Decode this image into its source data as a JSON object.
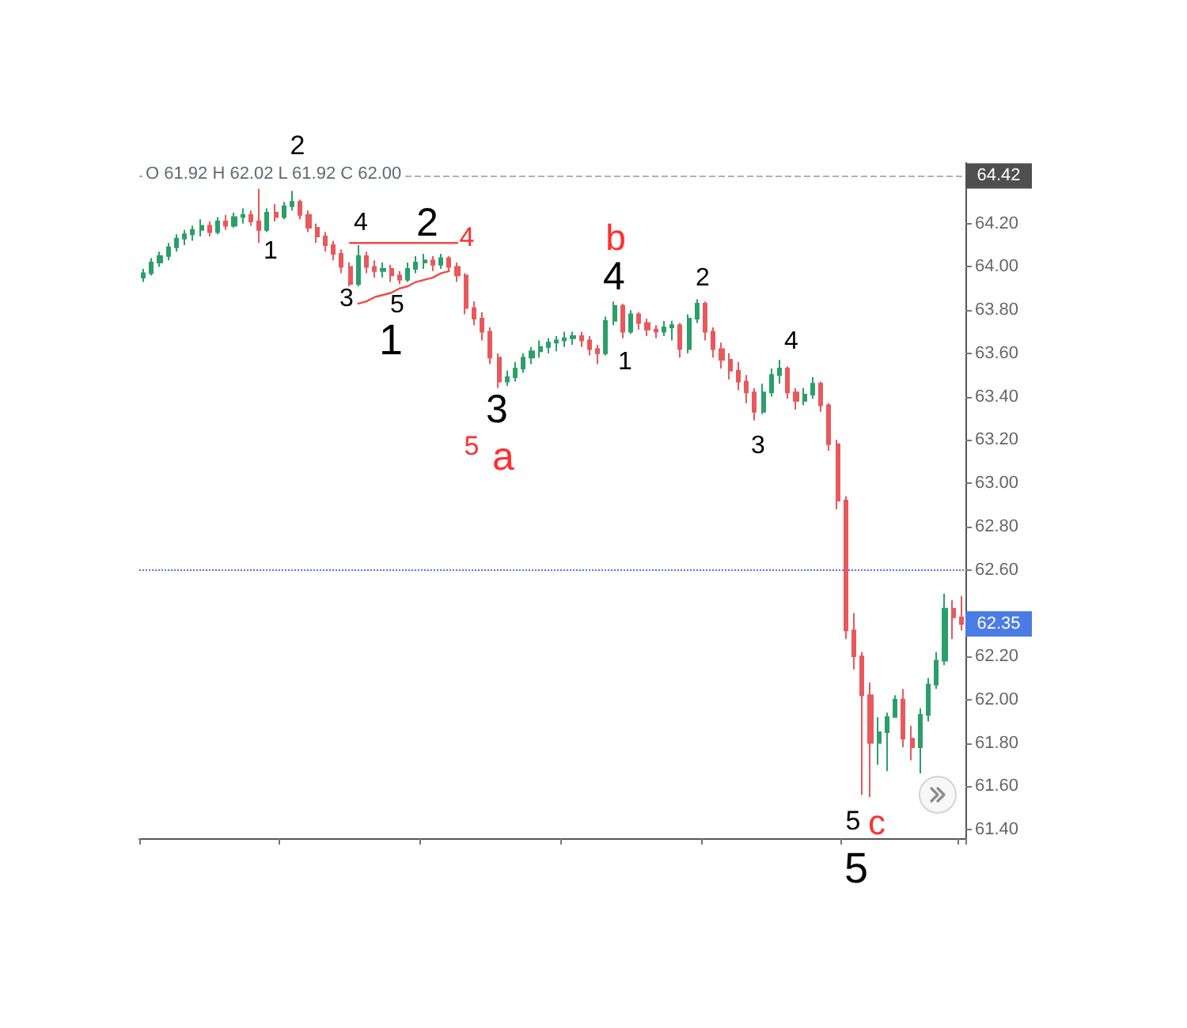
{
  "chart_data": {
    "type": "candlestick",
    "categories": [
      null,
      null,
      null,
      null,
      null,
      null,
      null,
      null,
      null,
      null,
      null,
      null,
      null,
      null,
      null,
      null,
      null,
      null,
      null,
      null,
      null,
      null,
      null,
      null,
      null,
      null,
      null,
      null,
      null,
      null,
      null,
      null,
      null,
      null,
      null,
      null,
      null,
      null,
      null,
      null,
      null,
      null,
      null,
      null,
      null,
      null,
      null,
      null,
      null,
      null,
      null,
      null,
      null,
      null,
      null,
      null,
      null,
      null,
      null,
      null,
      null,
      null,
      null,
      null,
      null,
      null,
      null,
      null,
      null,
      null,
      null,
      null,
      null,
      null,
      null,
      null,
      null,
      null,
      null,
      null,
      null,
      null,
      null,
      null,
      null,
      null,
      null,
      null,
      null,
      null,
      null,
      null,
      null,
      null,
      null,
      null,
      null,
      null,
      null,
      null
    ],
    "series": [
      {
        "ohlc": [
          [
            63.95,
            63.99,
            63.93,
            63.97
          ],
          [
            63.97,
            64.04,
            63.96,
            64.02
          ],
          [
            64.02,
            64.07,
            64.0,
            64.05
          ],
          [
            64.05,
            64.11,
            64.03,
            64.09
          ],
          [
            64.09,
            64.15,
            64.07,
            64.13
          ],
          [
            64.13,
            64.17,
            64.1,
            64.15
          ],
          [
            64.15,
            64.19,
            64.12,
            64.17
          ],
          [
            64.17,
            64.22,
            64.14,
            64.19
          ],
          [
            64.19,
            64.21,
            64.14,
            64.16
          ],
          [
            64.16,
            64.23,
            64.15,
            64.21
          ],
          [
            64.21,
            64.24,
            64.17,
            64.19
          ],
          [
            64.19,
            64.25,
            64.18,
            64.23
          ],
          [
            64.23,
            64.27,
            64.2,
            64.24
          ],
          [
            64.24,
            64.26,
            64.19,
            64.21
          ],
          [
            64.21,
            64.36,
            64.11,
            64.17
          ],
          [
            64.17,
            64.27,
            64.16,
            64.25
          ],
          [
            64.25,
            64.29,
            64.21,
            64.23
          ],
          [
            64.23,
            64.3,
            64.22,
            64.28
          ],
          [
            64.28,
            64.35,
            64.26,
            64.3
          ],
          [
            64.3,
            64.31,
            64.22,
            64.24
          ],
          [
            64.24,
            64.26,
            64.16,
            64.18
          ],
          [
            64.18,
            64.2,
            64.11,
            64.14
          ],
          [
            64.14,
            64.16,
            64.07,
            64.1
          ],
          [
            64.1,
            64.12,
            64.03,
            64.06
          ],
          [
            64.06,
            64.08,
            63.97,
            64.0
          ],
          [
            64.0,
            64.02,
            63.91,
            63.92
          ],
          [
            63.92,
            64.1,
            63.91,
            64.05
          ],
          [
            64.05,
            64.07,
            63.97,
            64.0
          ],
          [
            64.0,
            64.03,
            63.95,
            63.98
          ],
          [
            63.98,
            64.02,
            63.95,
            63.99
          ],
          [
            63.99,
            64.01,
            63.93,
            63.96
          ],
          [
            63.96,
            63.98,
            63.92,
            63.94
          ],
          [
            63.94,
            64.02,
            63.93,
            63.99
          ],
          [
            63.99,
            64.05,
            63.97,
            64.02
          ],
          [
            64.02,
            64.06,
            63.99,
            64.03
          ],
          [
            64.03,
            64.05,
            63.98,
            64.01
          ],
          [
            64.01,
            64.06,
            63.99,
            64.04
          ],
          [
            64.04,
            64.05,
            63.98,
            64.0
          ],
          [
            64.0,
            64.02,
            63.93,
            63.96
          ],
          [
            63.96,
            63.97,
            63.78,
            63.81
          ],
          [
            63.81,
            63.84,
            63.73,
            63.76
          ],
          [
            63.76,
            63.79,
            63.66,
            63.7
          ],
          [
            63.7,
            63.72,
            63.55,
            63.58
          ],
          [
            63.58,
            63.6,
            63.44,
            63.47
          ],
          [
            63.47,
            63.52,
            63.45,
            63.49
          ],
          [
            63.49,
            63.56,
            63.47,
            63.53
          ],
          [
            63.53,
            63.6,
            63.51,
            63.58
          ],
          [
            63.58,
            63.63,
            63.55,
            63.61
          ],
          [
            63.61,
            63.66,
            63.58,
            63.63
          ],
          [
            63.63,
            63.67,
            63.6,
            63.65
          ],
          [
            63.65,
            63.68,
            63.61,
            63.66
          ],
          [
            63.66,
            63.7,
            63.63,
            63.67
          ],
          [
            63.67,
            63.7,
            63.64,
            63.68
          ],
          [
            63.68,
            63.7,
            63.63,
            63.66
          ],
          [
            63.66,
            63.68,
            63.59,
            63.62
          ],
          [
            63.62,
            63.64,
            63.55,
            63.6
          ],
          [
            63.6,
            63.77,
            63.59,
            63.75
          ],
          [
            63.75,
            63.84,
            63.73,
            63.82
          ],
          [
            63.82,
            63.83,
            63.67,
            63.7
          ],
          [
            63.7,
            63.8,
            63.69,
            63.78
          ],
          [
            63.78,
            63.79,
            63.71,
            63.74
          ],
          [
            63.74,
            63.76,
            63.68,
            63.71
          ],
          [
            63.71,
            63.73,
            63.67,
            63.7
          ],
          [
            63.7,
            63.75,
            63.68,
            63.72
          ],
          [
            63.72,
            63.75,
            63.66,
            63.73
          ],
          [
            63.73,
            63.74,
            63.58,
            63.62
          ],
          [
            63.62,
            63.78,
            63.6,
            63.76
          ],
          [
            63.76,
            63.85,
            63.74,
            63.83
          ],
          [
            63.83,
            63.84,
            63.66,
            63.7
          ],
          [
            63.7,
            63.72,
            63.58,
            63.62
          ],
          [
            63.62,
            63.65,
            63.53,
            63.57
          ],
          [
            63.57,
            63.6,
            63.48,
            63.52
          ],
          [
            63.52,
            63.56,
            63.43,
            63.47
          ],
          [
            63.47,
            63.5,
            63.37,
            63.42
          ],
          [
            63.42,
            63.44,
            63.29,
            63.33
          ],
          [
            63.33,
            63.46,
            63.32,
            63.42
          ],
          [
            63.42,
            63.53,
            63.4,
            63.5
          ],
          [
            63.5,
            63.57,
            63.46,
            63.53
          ],
          [
            63.53,
            63.54,
            63.39,
            63.42
          ],
          [
            63.42,
            63.44,
            63.34,
            63.38
          ],
          [
            63.38,
            63.44,
            63.36,
            63.41
          ],
          [
            63.41,
            63.49,
            63.39,
            63.46
          ],
          [
            63.46,
            63.47,
            63.33,
            63.36
          ],
          [
            63.36,
            63.37,
            63.15,
            63.18
          ],
          [
            63.18,
            63.2,
            62.88,
            62.92
          ],
          [
            62.92,
            62.94,
            62.28,
            62.32
          ],
          [
            62.32,
            62.4,
            62.14,
            62.2
          ],
          [
            62.2,
            62.22,
            61.56,
            62.02
          ],
          [
            62.02,
            62.08,
            61.55,
            61.8
          ],
          [
            61.8,
            61.92,
            61.7,
            61.85
          ],
          [
            61.85,
            61.94,
            61.67,
            61.92
          ],
          [
            61.92,
            62.02,
            61.92,
            62.0
          ],
          [
            62.0,
            62.05,
            61.78,
            61.82
          ],
          [
            61.82,
            61.88,
            61.72,
            61.78
          ],
          [
            61.78,
            61.96,
            61.66,
            61.93
          ],
          [
            61.93,
            62.1,
            61.9,
            62.07
          ],
          [
            62.07,
            62.22,
            62.05,
            62.18
          ],
          [
            62.18,
            62.49,
            62.16,
            62.42
          ],
          [
            62.42,
            62.46,
            62.28,
            62.38
          ],
          [
            62.38,
            62.48,
            62.32,
            62.35
          ]
        ],
        "colors": [
          "#2a9f6a",
          "#2a9f6a",
          "#2a9f6a",
          "#2a9f6a",
          "#2a9f6a",
          "#2a9f6a",
          "#2a9f6a",
          "#2a9f6a",
          "#e8585c",
          "#2a9f6a",
          "#e8585c",
          "#2a9f6a",
          "#2a9f6a",
          "#e8585c",
          "#e8585c",
          "#2a9f6a",
          "#e8585c",
          "#2a9f6a",
          "#2a9f6a",
          "#e8585c",
          "#e8585c",
          "#e8585c",
          "#e8585c",
          "#e8585c",
          "#e8585c",
          "#e8585c",
          "#2a9f6a",
          "#e8585c",
          "#e8585c",
          "#2a9f6a",
          "#e8585c",
          "#e8585c",
          "#2a9f6a",
          "#2a9f6a",
          "#2a9f6a",
          "#e8585c",
          "#2a9f6a",
          "#e8585c",
          "#e8585c",
          "#e8585c",
          "#e8585c",
          "#e8585c",
          "#e8585c",
          "#e8585c",
          "#2a9f6a",
          "#2a9f6a",
          "#2a9f6a",
          "#2a9f6a",
          "#2a9f6a",
          "#2a9f6a",
          "#2a9f6a",
          "#2a9f6a",
          "#2a9f6a",
          "#e8585c",
          "#e8585c",
          "#e8585c",
          "#2a9f6a",
          "#2a9f6a",
          "#e8585c",
          "#2a9f6a",
          "#e8585c",
          "#e8585c",
          "#e8585c",
          "#2a9f6a",
          "#2a9f6a",
          "#e8585c",
          "#2a9f6a",
          "#2a9f6a",
          "#e8585c",
          "#e8585c",
          "#e8585c",
          "#e8585c",
          "#e8585c",
          "#e8585c",
          "#e8585c",
          "#2a9f6a",
          "#2a9f6a",
          "#2a9f6a",
          "#e8585c",
          "#e8585c",
          "#2a9f6a",
          "#2a9f6a",
          "#e8585c",
          "#e8585c",
          "#e8585c",
          "#e8585c",
          "#e8585c",
          "#e8585c",
          "#e8585c",
          "#2a9f6a",
          "#2a9f6a",
          "#2a9f6a",
          "#e8585c",
          "#e8585c",
          "#2a9f6a",
          "#2a9f6a",
          "#2a9f6a",
          "#2a9f6a",
          "#e8585c",
          "#e8585c"
        ]
      },
      {
        "type": "line",
        "color": "#f0484a",
        "values": [
          null,
          null,
          null,
          null,
          null,
          null,
          null,
          null,
          null,
          null,
          null,
          null,
          null,
          null,
          null,
          null,
          null,
          null,
          null,
          null,
          null,
          null,
          null,
          null,
          null,
          64.11,
          64.11,
          64.11,
          64.11,
          64.11,
          64.11,
          64.11,
          64.11,
          64.11,
          64.11,
          64.11,
          64.11,
          64.11,
          64.11,
          null,
          null,
          null,
          null,
          null,
          null,
          null,
          null,
          null,
          null,
          null,
          null,
          null,
          null,
          null,
          null,
          null,
          null,
          null,
          null,
          null,
          null,
          null,
          null,
          null,
          null,
          null,
          null,
          null,
          null,
          null,
          null,
          null,
          null,
          null,
          null,
          null,
          null,
          null,
          null,
          null,
          null,
          null,
          null,
          null,
          null,
          null,
          null,
          null,
          null,
          null,
          null,
          null,
          null,
          null,
          null,
          null,
          null,
          null,
          null,
          null
        ]
      },
      {
        "type": "line",
        "color": "#f0484a",
        "values": [
          null,
          null,
          null,
          null,
          null,
          null,
          null,
          null,
          null,
          null,
          null,
          null,
          null,
          null,
          null,
          null,
          null,
          null,
          null,
          null,
          null,
          null,
          null,
          null,
          null,
          null,
          63.83,
          63.84,
          63.86,
          63.87,
          63.88,
          63.9,
          63.91,
          63.93,
          63.94,
          63.95,
          63.97,
          63.98,
          null,
          null,
          null,
          null,
          null,
          null,
          null,
          null,
          null,
          null,
          null,
          null,
          null,
          null,
          null,
          null,
          null,
          null,
          null,
          null,
          null,
          null,
          null,
          null,
          null,
          null,
          null,
          null,
          null,
          null,
          null,
          null,
          null,
          null,
          null,
          null,
          null,
          null,
          null,
          null,
          null,
          null,
          null,
          null,
          null,
          null,
          null,
          null,
          null,
          null,
          null,
          null,
          null,
          null,
          null,
          null,
          null,
          null,
          null,
          null,
          null,
          null
        ]
      }
    ],
    "ylim": [
      61.36,
      64.48
    ],
    "yticks": [
      {
        "value": 61.4,
        "label": "61.40"
      },
      {
        "value": 61.6,
        "label": "61.60"
      },
      {
        "value": 61.8,
        "label": "61.80"
      },
      {
        "value": 62.0,
        "label": "62.00"
      },
      {
        "value": 62.2,
        "label": "62.20"
      },
      {
        "value": 62.4,
        "label": null
      },
      {
        "value": 62.6,
        "label": "62.60"
      },
      {
        "value": 62.8,
        "label": "62.80"
      },
      {
        "value": 63.0,
        "label": "63.00"
      },
      {
        "value": 63.2,
        "label": "63.20"
      },
      {
        "value": 63.4,
        "label": "63.40"
      },
      {
        "value": 63.6,
        "label": "63.60"
      },
      {
        "value": 63.8,
        "label": "63.80"
      },
      {
        "value": 64.0,
        "label": "64.00"
      },
      {
        "value": 64.2,
        "label": "64.20"
      }
    ],
    "tick_labels": "y",
    "ref_lines": [
      {
        "axis": "y",
        "value": 64.42,
        "label": "64.42",
        "color": "#4f4f4f",
        "line_style": "dashed"
      },
      {
        "axis": "y",
        "value": 62.6,
        "color": "#5b6cf0",
        "line_style": "dotted"
      }
    ],
    "annotations": [
      "O 61.92 H 62.02 L 61.92 C 62.00",
      "2",
      "1",
      "4",
      "3",
      "5",
      "2",
      "4",
      "1",
      "3",
      "5",
      "a",
      "b",
      "4",
      "1",
      "2",
      "4",
      "3",
      "5",
      "c",
      "5",
      {
        "text": "62.35",
        "y": 62.35
      }
    ]
  }
}
